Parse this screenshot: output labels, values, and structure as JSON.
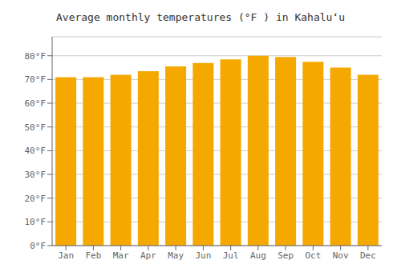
{
  "chart_data": {
    "type": "bar",
    "title": "Average monthly temperatures (°F ) in Kahaluʻu",
    "categories": [
      "Jan",
      "Feb",
      "Mar",
      "Apr",
      "May",
      "Jun",
      "Jul",
      "Aug",
      "Sep",
      "Oct",
      "Nov",
      "Dec"
    ],
    "values": [
      71,
      71,
      72,
      73.5,
      75.5,
      77,
      78.5,
      80,
      79.5,
      77.5,
      75,
      72
    ],
    "color": "#F5A800",
    "ylim": [
      0,
      88
    ],
    "yticks": [
      {
        "value": 0,
        "label": "0°F"
      },
      {
        "value": 10,
        "label": "10°F"
      },
      {
        "value": 20,
        "label": "20°F"
      },
      {
        "value": 30,
        "label": "30°F"
      },
      {
        "value": 40,
        "label": "40°F"
      },
      {
        "value": 50,
        "label": "50°F"
      },
      {
        "value": 60,
        "label": "60°F"
      },
      {
        "value": 70,
        "label": "70°F"
      },
      {
        "value": 80,
        "label": "80°F"
      }
    ],
    "grid": true
  }
}
